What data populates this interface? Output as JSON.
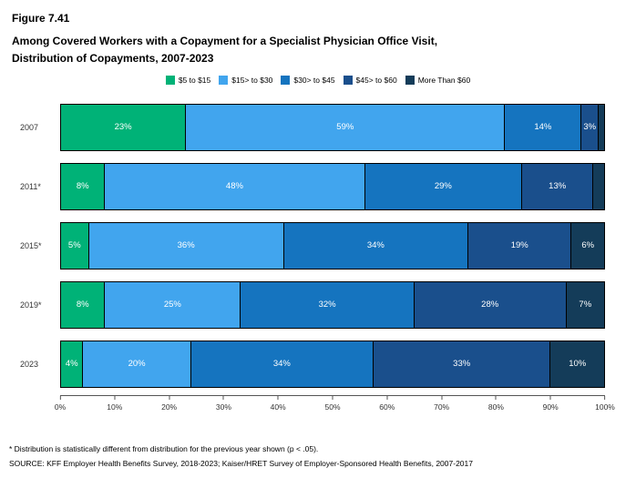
{
  "header": {
    "figure_label": "Figure 7.41",
    "title_line1": "Among Covered Workers with a Copayment for a Specialist Physician Office Visit,",
    "title_line2": "Distribution of Copayments, 2007-2023"
  },
  "footnotes": {
    "note": "* Distribution is statistically different from distribution for the previous year shown (p < .05).",
    "source": "SOURCE: KFF Employer Health Benefits Survey, 2018-2023; Kaiser/HRET Survey of Employer-Sponsored Health Benefits, 2007-2017"
  },
  "chart_data": {
    "type": "bar",
    "stacked": true,
    "orientation": "horizontal",
    "title": "Among Covered Workers with a Copayment for a Specialist Physician Office Visit, Distribution of Copayments, 2007-2023",
    "categories": [
      "2007",
      "2011*",
      "2015*",
      "2019*",
      "2023"
    ],
    "legend_position": "top",
    "xlim": [
      0,
      100
    ],
    "x_ticks": [
      "0%",
      "10%",
      "20%",
      "30%",
      "40%",
      "50%",
      "60%",
      "70%",
      "80%",
      "90%",
      "100%"
    ],
    "series": [
      {
        "name": "$5 to $15",
        "color": "#00B277",
        "values": [
          23,
          8,
          5,
          8,
          4
        ],
        "labels": [
          "23%",
          "8%",
          "5%",
          "8%",
          "4%"
        ]
      },
      {
        "name": "$15> to $30",
        "color": "#41A5EE",
        "values": [
          59,
          48,
          36,
          25,
          20
        ],
        "labels": [
          "59%",
          "48%",
          "36%",
          "25%",
          "20%"
        ]
      },
      {
        "name": "$30> to  $45",
        "color": "#1574BF",
        "values": [
          14,
          29,
          34,
          32,
          34
        ],
        "labels": [
          "14%",
          "29%",
          "34%",
          "32%",
          "34%"
        ]
      },
      {
        "name": "$45> to $60",
        "color": "#1A4F8C",
        "values": [
          3,
          13,
          19,
          28,
          33
        ],
        "labels": [
          "3%",
          "13%",
          "19%",
          "28%",
          "33%"
        ]
      },
      {
        "name": "More Than $60",
        "color": "#143C59",
        "values": [
          1,
          2,
          6,
          7,
          10
        ],
        "labels": [
          "",
          "",
          "6%",
          "7%",
          "10%"
        ]
      }
    ]
  }
}
